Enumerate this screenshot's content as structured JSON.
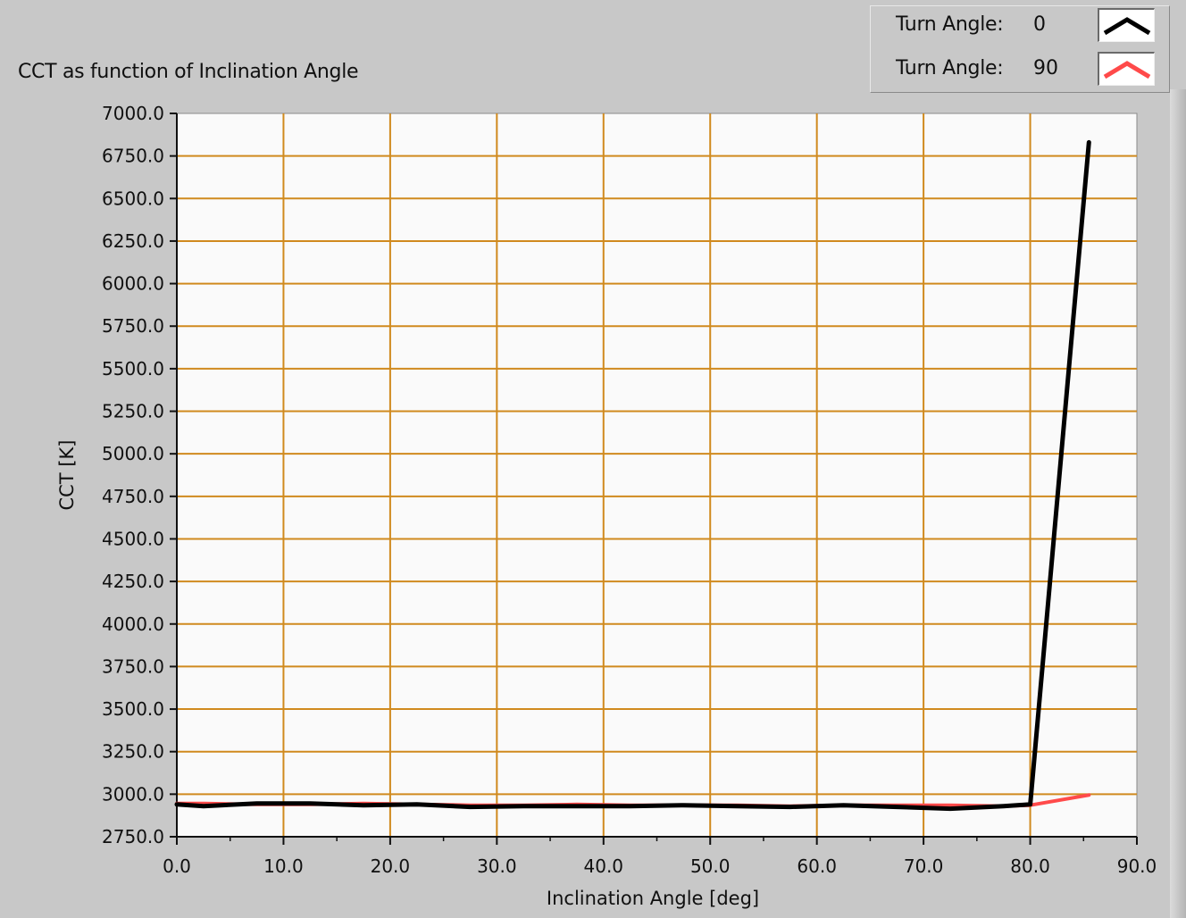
{
  "chart_data": {
    "type": "line",
    "title": "CCT as function of Inclination Angle",
    "xlabel": "Inclination Angle [deg]",
    "ylabel": "CCT [K]",
    "xlim": [
      0,
      90
    ],
    "ylim": [
      2750,
      7000
    ],
    "x_ticks": [
      "0.0",
      "10.0",
      "20.0",
      "30.0",
      "40.0",
      "50.0",
      "60.0",
      "70.0",
      "80.0",
      "90.0"
    ],
    "y_ticks": [
      "7000.0",
      "6750.0",
      "6500.0",
      "6250.0",
      "6000.0",
      "5750.0",
      "5500.0",
      "5250.0",
      "5000.0",
      "4750.0",
      "4500.0",
      "4250.0",
      "4000.0",
      "3750.0",
      "3500.0",
      "3250.0",
      "3000.0",
      "2750.0"
    ],
    "grid": true,
    "grid_color": "#d08a1e",
    "plot_background": "#fafafa",
    "legend_position": "top-right",
    "series": [
      {
        "name": "Turn Angle: 0",
        "color": "#000000",
        "x": [
          0,
          2.5,
          7.5,
          12.5,
          17.5,
          22.5,
          27.5,
          32.5,
          37.5,
          42.5,
          47.5,
          52.5,
          57.5,
          62.5,
          67.5,
          72.5,
          77.5,
          80,
          85.5
        ],
        "y": [
          2940,
          2930,
          2945,
          2945,
          2935,
          2940,
          2925,
          2930,
          2930,
          2930,
          2935,
          2930,
          2925,
          2935,
          2925,
          2915,
          2930,
          2940,
          6830
        ]
      },
      {
        "name": "Turn Angle: 90",
        "color": "#ff4a4a",
        "x": [
          0,
          2.5,
          7.5,
          12.5,
          17.5,
          22.5,
          27.5,
          32.5,
          37.5,
          42.5,
          47.5,
          52.5,
          57.5,
          62.5,
          67.5,
          72.5,
          77.5,
          80,
          85.5
        ],
        "y": [
          2945,
          2945,
          2940,
          2940,
          2945,
          2940,
          2935,
          2935,
          2940,
          2935,
          2935,
          2935,
          2930,
          2935,
          2935,
          2935,
          2930,
          2935,
          2995
        ]
      }
    ]
  },
  "legend": {
    "items": [
      {
        "label": "Turn Angle:",
        "value": "0",
        "color": "#000000"
      },
      {
        "label": "Turn Angle:",
        "value": "90",
        "color": "#ff4a4a"
      }
    ]
  }
}
